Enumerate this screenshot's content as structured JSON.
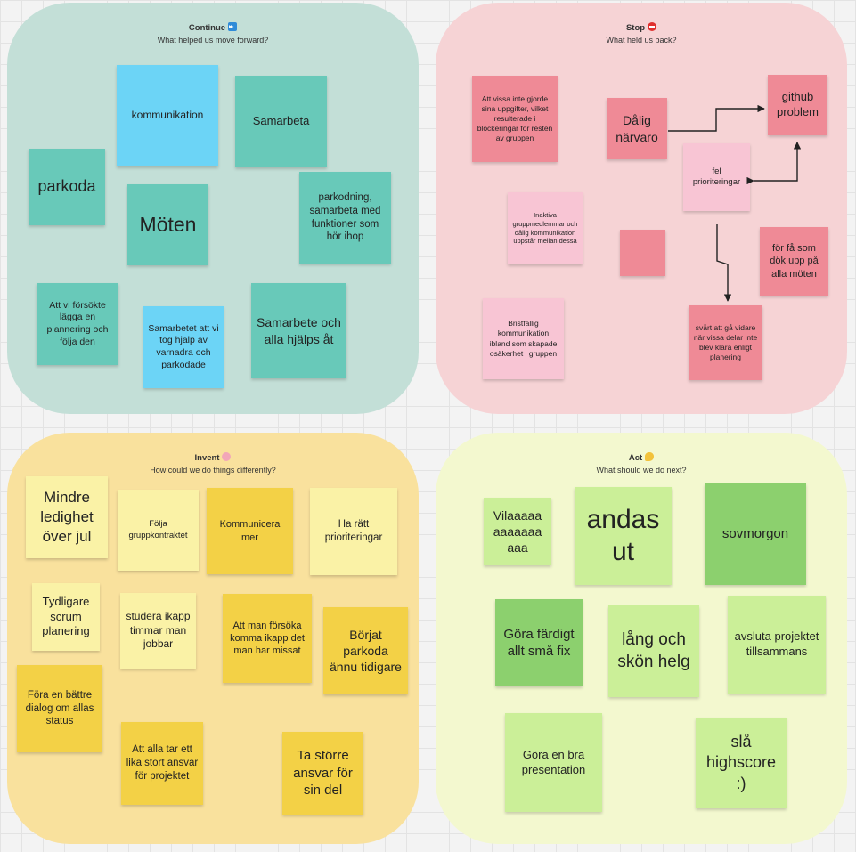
{
  "quadrants": {
    "continue": {
      "title": "Continue",
      "subtitle": "What helped us move forward?",
      "emoji_icon": "fast-forward-icon"
    },
    "stop": {
      "title": "Stop",
      "subtitle": "What held us back?",
      "emoji_icon": "no-entry-icon"
    },
    "invent": {
      "title": "Invent",
      "subtitle": "How could we do things differently?",
      "emoji_icon": "brain-icon"
    },
    "act": {
      "title": "Act",
      "subtitle": "What should we do next?",
      "emoji_icon": "flexed-biceps-icon"
    }
  },
  "notes": {
    "continue": [
      "kommunikation",
      "Samarbeta",
      "parkoda",
      "Möten",
      "parkodning, samarbeta med funktioner som hör ihop",
      "Att vi försökte lägga en plannering och följa den",
      "Samarbetet att vi tog hjälp av varnadra och parkodade",
      "Samarbete och alla hjälps åt"
    ],
    "stop": [
      "Att vissa inte gjorde sina uppgifter, vilket resulterade i blockeringar för resten av gruppen",
      "Dålig närvaro",
      "github problem",
      "fel prioriteringar",
      "Inaktiva gruppmedlemmar och dålig kommunikation uppstår mellan dessa",
      "",
      "för få som dök upp på alla möten",
      "Bristfällig kommunikation ibland som skapade osäkerhet i gruppen",
      "svårt att gå vidare när vissa delar inte blev klara enligt planering"
    ],
    "invent": [
      "Mindre ledighet över jul",
      "Följa gruppkontraktet",
      "Kommunicera mer",
      "Ha rätt prioriteringar",
      "Tydligare scrum planering",
      "studera ikapp timmar man jobbar",
      "Att man försöka komma ikapp det man har missat",
      "Börjat parkoda ännu tidigare",
      "Föra en bättre dialog om allas status",
      "Att alla tar ett lika stort ansvar för projektet",
      "Ta större ansvar för sin del"
    ],
    "act": [
      "Vilaaaaa aaaaaaa aaa",
      "andas ut",
      "sovmorgon",
      "Göra färdigt allt små fix",
      "lång och skön helg",
      "avsluta projektet tillsammans",
      "Göra en bra presentation",
      "slå highscore :)"
    ]
  },
  "colors": {
    "teal": "#68c9b9",
    "cyan": "#6cd4f6",
    "pink": "#ef8a96",
    "light_pink": "#f8c5d4",
    "light_yellow": "#faf2a6",
    "yellow": "#f3d146",
    "light_green": "#cbef98",
    "green": "#8cd06e"
  }
}
